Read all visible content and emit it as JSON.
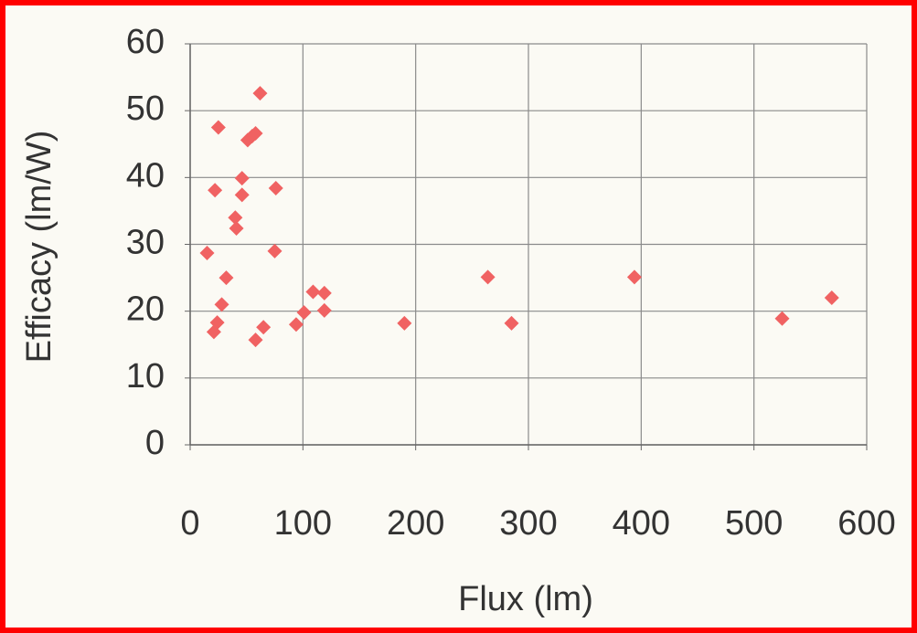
{
  "chart_data": {
    "type": "scatter",
    "x_label": "Flux (lm)",
    "y_label": "Efficacy (lm/W)",
    "x": [
      15,
      25,
      22,
      32,
      28,
      24,
      21,
      40,
      41,
      46,
      46,
      51,
      55,
      58,
      62,
      76,
      75,
      65,
      58,
      94,
      101,
      109,
      119,
      119,
      190,
      264,
      285,
      394,
      525,
      569
    ],
    "values": [
      28.7,
      47.5,
      38.1,
      25,
      21,
      18.3,
      16.9,
      34,
      32.4,
      39.9,
      37.4,
      45.6,
      46.2,
      46.6,
      52.6,
      38.4,
      29,
      17.6,
      15.7,
      18,
      19.8,
      22.9,
      22.7,
      20.1,
      18.2,
      25.1,
      18.2,
      25.1,
      18.9,
      22
    ],
    "color": "#f06262",
    "xlim": [
      0,
      600
    ],
    "xticks": [
      0,
      100,
      200,
      300,
      400,
      500,
      600
    ],
    "ylim": [
      0,
      60
    ],
    "yticks": [
      0,
      10,
      20,
      30,
      40,
      50,
      60
    ],
    "grid": true
  }
}
